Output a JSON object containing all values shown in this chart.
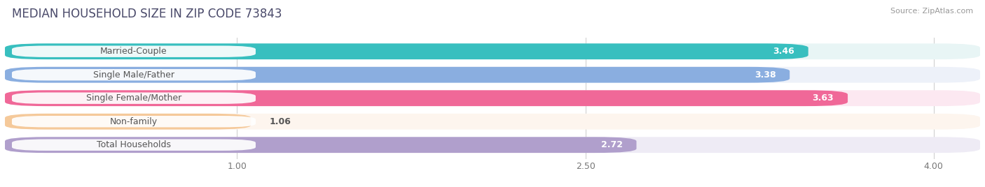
{
  "title": "MEDIAN HOUSEHOLD SIZE IN ZIP CODE 73843",
  "source": "Source: ZipAtlas.com",
  "categories": [
    "Married-Couple",
    "Single Male/Father",
    "Single Female/Mother",
    "Non-family",
    "Total Households"
  ],
  "values": [
    3.46,
    3.38,
    3.63,
    1.06,
    2.72
  ],
  "bar_colors": [
    "#38bfbf",
    "#8aaee0",
    "#f06898",
    "#f5c99a",
    "#b09fcc"
  ],
  "bar_bg_colors": [
    "#e8f5f5",
    "#edf1f9",
    "#fce8f1",
    "#fdf5ee",
    "#eeebf5"
  ],
  "xlim_max": 4.2,
  "xticks": [
    1.0,
    2.5,
    4.0
  ],
  "label_text_color": "#555555",
  "value_colors_inside": [
    "white",
    "white",
    "white"
  ],
  "value_colors_outside": [
    "#888888",
    "#888888"
  ],
  "title_fontsize": 12,
  "source_fontsize": 8,
  "label_fontsize": 9,
  "value_fontsize": 9
}
